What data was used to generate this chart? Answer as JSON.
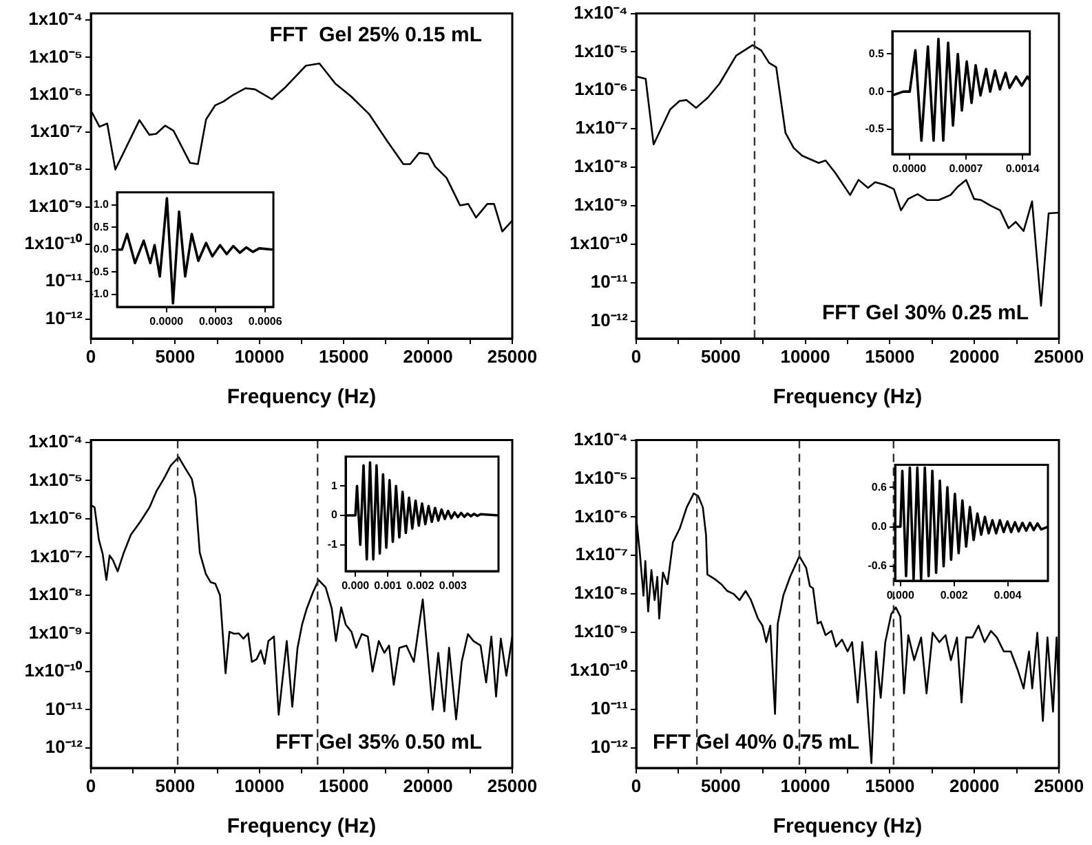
{
  "chart_data": [
    {
      "type": "line",
      "color": "#000000",
      "xlabel": "Frequency (Hz)",
      "log": "y",
      "annotations": [
        "FFT  Gel 25% 0.15 mL"
      ],
      "x": [
        0,
        511,
        970,
        1450,
        2880,
        3470,
        3875,
        4410,
        4900,
        5890,
        6350,
        6835,
        7370,
        7860,
        8450,
        9180,
        9740,
        10740,
        11545,
        12755,
        13560,
        14500,
        15445,
        16520,
        17600,
        18540,
        18945,
        19480,
        20020,
        20425,
        21100,
        21900,
        22390,
        22850,
        23520,
        23920,
        24410,
        25000
      ],
      "values": [
        3.8e-07,
        1.4e-07,
        1.7e-07,
        1e-08,
        2.1e-07,
        8.5e-08,
        9e-08,
        1.5e-07,
        1.1e-07,
        1.5e-08,
        1.4e-08,
        2.2e-07,
        5.2e-07,
        6.6e-07,
        1e-06,
        1.5e-06,
        1.4e-06,
        7.6e-07,
        1.6e-06,
        6e-06,
        6.9e-06,
        2e-06,
        9e-07,
        3e-07,
        5.6e-08,
        1.4e-08,
        1.4e-08,
        2.8e-08,
        2.6e-08,
        1.2e-08,
        6e-09,
        1.1e-09,
        1.2e-09,
        5.2e-10,
        1.2e-09,
        1.2e-09,
        2.2e-10,
        4.3e-10
      ],
      "xlim": [
        0,
        25000
      ],
      "xticks": [
        0,
        {
          "value": 2500,
          "label": null
        },
        5000,
        {
          "value": 7500,
          "label": null
        },
        10000,
        {
          "value": 12500,
          "label": null
        },
        15000,
        {
          "value": 17500,
          "label": null
        },
        20000,
        {
          "value": 22500,
          "label": null
        },
        25000
      ],
      "ylim": [
        3e-13,
        0.00015
      ],
      "yticks": [
        {
          "value": 0.0001,
          "label": "1x10⁻⁴"
        },
        {
          "value": 1e-05,
          "label": "1x10⁻⁵"
        },
        {
          "value": 1e-06,
          "label": "1x10⁻⁶"
        },
        {
          "value": 1e-07,
          "label": "1x10⁻⁷"
        },
        {
          "value": 1e-08,
          "label": "1x10⁻⁸"
        },
        {
          "value": 1e-09,
          "label": "1x10⁻⁹"
        },
        {
          "value": 1e-10,
          "label": "1x10⁻¹⁰"
        },
        {
          "value": 1e-11,
          "label": "10⁻¹¹"
        },
        {
          "value": 1e-12,
          "label": "10⁻¹²"
        }
      ]
    },
    {
      "type": "line",
      "color": "#000000",
      "x": [
        -0.000297,
        -0.00027,
        -0.000239,
        -0.000191,
        -0.000138,
        -9.8e-05,
        -7.2e-05,
        -4e-05,
        3e-06,
        4e-05,
        7.7e-05,
        0.000114,
        0.000154,
        0.000194,
        0.000241,
        0.000279,
        0.000326,
        0.000366,
        0.000406,
        0.000446,
        0.000485,
        0.000525,
        0.000565,
        0.000645
      ],
      "values": [
        0,
        0,
        0.35,
        -0.3,
        0.2,
        -0.3,
        0.1,
        -0.6,
        1.15,
        -1.2,
        0.85,
        -0.6,
        0.35,
        -0.25,
        0.15,
        -0.15,
        0.1,
        -0.1,
        0.08,
        -0.07,
        0.05,
        -0.05,
        0.03,
        0
      ],
      "xlim": [
        -0.0003,
        0.00065
      ],
      "xticks": [
        {
          "value": 0,
          "label": "0.0000"
        },
        {
          "value": 0.0003,
          "label": "0.0003"
        },
        {
          "value": 0.0006,
          "label": "0.0006"
        }
      ],
      "ylim": [
        -1.28,
        1.28
      ],
      "yticks": [
        {
          "value": -1,
          "label": "-1.0"
        },
        {
          "value": -0.5,
          "label": "-0.5"
        },
        {
          "value": 0,
          "label": "0.0"
        },
        {
          "value": 0.5,
          "label": "0.5"
        },
        {
          "value": 1,
          "label": "1.0"
        }
      ]
    },
    {
      "type": "line",
      "color": "#000000",
      "xlabel": "Frequency (Hz)",
      "log": "y",
      "annotations": [
        "FFT Gel 30% 0.25 mL"
      ],
      "ref_lines": [
        {
          "axis": "x",
          "value": 7000,
          "line_style": "dashed",
          "color": "#333333"
        }
      ],
      "x": [
        0,
        560,
        1030,
        2010,
        2560,
        2980,
        3540,
        4240,
        4930,
        5910,
        6880,
        7390,
        7860,
        8280,
        8830,
        9310,
        9810,
        10790,
        11200,
        11760,
        12650,
        13150,
        13710,
        14130,
        14690,
        15240,
        15660,
        16080,
        16640,
        17200,
        17890,
        18590,
        19010,
        19510,
        19980,
        20400,
        20960,
        21520,
        22020,
        22440,
        22910,
        23410,
        23940,
        24390,
        25000
      ],
      "values": [
        2.3e-06,
        2e-06,
        3.9e-08,
        3.2e-07,
        5.3e-07,
        5.6e-07,
        3.5e-07,
        6.5e-07,
        1.5e-06,
        8e-06,
        1.5e-05,
        1.1e-05,
        5.2e-06,
        4e-06,
        7.8e-08,
        3.2e-08,
        2e-08,
        1.3e-08,
        1.5e-08,
        7.3e-09,
        1.9e-09,
        4.7e-09,
        2.9e-09,
        4.1e-09,
        3.5e-09,
        2.7e-09,
        7.6e-10,
        1.5e-09,
        2e-09,
        1.4e-09,
        1.4e-09,
        1.9e-09,
        3.1e-09,
        4.7e-09,
        1.5e-09,
        1.4e-09,
        1e-09,
        7.6e-10,
        2.6e-10,
        3.8e-10,
        2.2e-10,
        1.3e-09,
        2.5e-12,
        6.3e-10,
        6.6e-10
      ],
      "xlim": [
        0,
        25000
      ],
      "xticks": [
        0,
        {
          "value": 2500,
          "label": null
        },
        5000,
        {
          "value": 7500,
          "label": null
        },
        10000,
        {
          "value": 12500,
          "label": null
        },
        15000,
        {
          "value": 17500,
          "label": null
        },
        20000,
        {
          "value": 22500,
          "label": null
        },
        25000
      ],
      "ylim": [
        3.5e-13,
        0.0001
      ],
      "yticks": [
        {
          "value": 0.0001,
          "label": "1x10⁻⁴"
        },
        {
          "value": 1e-05,
          "label": "1x10⁻⁵"
        },
        {
          "value": 1e-06,
          "label": "1x10⁻⁶"
        },
        {
          "value": 1e-07,
          "label": "1x10⁻⁷"
        },
        {
          "value": 1e-08,
          "label": "1x10⁻⁸"
        },
        {
          "value": 1e-09,
          "label": "1x10⁻⁹"
        },
        {
          "value": 1e-10,
          "label": "1x10⁻¹⁰"
        },
        {
          "value": 1e-11,
          "label": "10⁻¹¹"
        },
        {
          "value": 1e-12,
          "label": "10⁻¹²"
        }
      ]
    },
    {
      "type": "line",
      "color": "#000000",
      "x": [
        -0.00021,
        -7.5e-05,
        5e-06,
        7.5e-05,
        0.00015,
        0.00023,
        0.0003,
        0.00036,
        0.00042,
        0.00048,
        0.00054,
        0.0006,
        0.00065,
        0.00071,
        0.00077,
        0.00082,
        0.00088,
        0.00095,
        0.001,
        0.00106,
        0.00112,
        0.00119,
        0.00124,
        0.00132,
        0.00139,
        0.00146,
        0.00149
      ],
      "values": [
        -0.05,
        0,
        0,
        0.55,
        -0.65,
        0.6,
        -0.65,
        0.7,
        -0.65,
        0.65,
        -0.45,
        0.5,
        -0.25,
        0.4,
        -0.15,
        0.35,
        -0.05,
        0.3,
        0,
        0.28,
        0.03,
        0.25,
        0.05,
        0.2,
        0.08,
        0.2,
        0.15
      ],
      "xlim": [
        -0.00021,
        0.00149
      ],
      "xticks": [
        {
          "value": 0,
          "label": "0.0000"
        },
        {
          "value": 0.0007,
          "label": "0.0007"
        },
        {
          "value": 0.0014,
          "label": "0.0014"
        }
      ],
      "ylim": [
        -0.83,
        0.8
      ],
      "yticks": [
        {
          "value": -0.5,
          "label": "-0.5"
        },
        {
          "value": 0,
          "label": "0.0"
        },
        {
          "value": 0.5,
          "label": "0.5"
        }
      ]
    },
    {
      "type": "line",
      "color": "#000000",
      "xlabel": "Frequency (Hz)",
      "log": "y",
      "annotations": [
        "FFT Gel 35% 0.50 mL"
      ],
      "ref_lines": [
        {
          "axis": "x",
          "value": 5150,
          "line_style": "dashed",
          "color": "#333333"
        },
        {
          "axis": "x",
          "value": 13450,
          "line_style": "dashed",
          "color": "#333333"
        }
      ],
      "x": [
        0,
        220,
        470,
        700,
        920,
        1110,
        1310,
        1590,
        1950,
        2370,
        2920,
        3480,
        3900,
        4320,
        4740,
        5210,
        5570,
        5990,
        6210,
        6460,
        6820,
        7100,
        7380,
        7660,
        7990,
        8220,
        8500,
        8770,
        9050,
        9330,
        9550,
        9830,
        10080,
        10310,
        10530,
        10860,
        11140,
        11620,
        11950,
        12260,
        12530,
        12810,
        13180,
        13510,
        13930,
        14290,
        14540,
        14850,
        15120,
        15460,
        15740,
        16070,
        16430,
        16710,
        17080,
        17410,
        17690,
        17970,
        18300,
        18720,
        19160,
        19690,
        19910,
        20280,
        20610,
        20970,
        21250,
        21670,
        22000,
        22370,
        22700,
        23120,
        23450,
        23760,
        24040,
        24320,
        24650,
        25000
      ],
      "values": [
        2.3e-06,
        2e-06,
        2.9e-07,
        1.2e-07,
        2.5e-08,
        1.1e-07,
        8.3e-08,
        4.2e-08,
        1.3e-07,
        3.8e-07,
        8.3e-07,
        2e-06,
        5.4e-06,
        1.1e-05,
        2.5e-05,
        4.1e-05,
        2.2e-05,
        1.1e-05,
        3.6e-06,
        1.3e-07,
        3.6e-08,
        2.2e-08,
        2e-08,
        1e-08,
        9e-11,
        1.1e-09,
        9.8e-10,
        1e-09,
        7.3e-10,
        1e-09,
        1.8e-10,
        2.1e-10,
        3.6e-10,
        1.6e-10,
        6.3e-10,
        8.3e-10,
        7.4e-12,
        6.3e-10,
        1.2e-11,
        4.2e-10,
        1.7e-09,
        4.5e-09,
        1.2e-08,
        2.5e-08,
        1.6e-08,
        4.5e-09,
        6.3e-10,
        4.8e-09,
        1.7e-09,
        1.1e-09,
        4.2e-10,
        9.6e-10,
        8.3e-10,
        1e-10,
        6.3e-10,
        3.1e-10,
        4.8e-10,
        4.5e-11,
        4.2e-10,
        4.8e-10,
        1.8e-10,
        7.8e-09,
        6.3e-10,
        1e-11,
        3.1e-10,
        9.1e-12,
        4.2e-10,
        5.6e-12,
        1.8e-10,
        9.6e-10,
        6.3e-10,
        4.8e-10,
        5.2e-11,
        8.3e-10,
        2.2e-11,
        7.3e-10,
        7.8e-11,
        8.3e-10
      ],
      "xlim": [
        0,
        25000
      ],
      "xticks": [
        0,
        {
          "value": 2500,
          "label": null
        },
        5000,
        {
          "value": 7500,
          "label": null
        },
        10000,
        {
          "value": 12500,
          "label": null
        },
        15000,
        {
          "value": 17500,
          "label": null
        },
        20000,
        {
          "value": 22500,
          "label": null
        },
        25000
      ],
      "ylim": [
        3.3e-13,
        0.000115
      ],
      "yticks": [
        {
          "value": 0.0001,
          "label": "1x10⁻⁴"
        },
        {
          "value": 1e-05,
          "label": "1x10⁻⁵"
        },
        {
          "value": 1e-06,
          "label": "1x10⁻⁶"
        },
        {
          "value": 1e-07,
          "label": "1x10⁻⁷"
        },
        {
          "value": 1e-08,
          "label": "1x10⁻⁸"
        },
        {
          "value": 1e-09,
          "label": "1x10⁻⁹"
        },
        {
          "value": 1e-10,
          "label": "1x10⁻¹⁰"
        },
        {
          "value": 1e-11,
          "label": "10⁻¹¹"
        },
        {
          "value": 1e-12,
          "label": "10⁻¹²"
        }
      ]
    },
    {
      "type": "line",
      "color": "#000000",
      "x": [
        -0.0003,
        0,
        5e-05,
        0.00015,
        0.00025,
        0.00035,
        0.00045,
        0.00055,
        0.00065,
        0.00075,
        0.00085,
        0.00095,
        0.00105,
        0.00115,
        0.00125,
        0.00135,
        0.00145,
        0.00155,
        0.00165,
        0.00175,
        0.00185,
        0.00195,
        0.00205,
        0.00215,
        0.00225,
        0.00235,
        0.00245,
        0.00255,
        0.00265,
        0.00275,
        0.00285,
        0.00295,
        0.00305,
        0.00315,
        0.00325,
        0.00335,
        0.00345,
        0.00355,
        0.00365,
        0.00375,
        0.00385,
        0.0044
      ],
      "values": [
        0,
        0,
        1,
        -1,
        1.7,
        -1.5,
        1.8,
        -1.5,
        1.7,
        -1.3,
        1.4,
        -1.1,
        1.2,
        -0.9,
        1,
        -0.75,
        0.8,
        -0.6,
        0.6,
        -0.45,
        0.5,
        -0.35,
        0.4,
        -0.3,
        0.32,
        -0.22,
        0.25,
        -0.18,
        0.2,
        -0.12,
        0.15,
        -0.1,
        0.1,
        -0.06,
        0.08,
        -0.05,
        0.06,
        -0.03,
        0.05,
        -0.02,
        0.04,
        0
      ],
      "xlim": [
        -0.0003,
        0.0044
      ],
      "xticks": [
        {
          "value": 0,
          "label": "0.000"
        },
        {
          "value": 0.001,
          "label": "0.001"
        },
        {
          "value": 0.002,
          "label": "0.002"
        },
        {
          "value": 0.003,
          "label": "0.003"
        }
      ],
      "ylim": [
        -1.9,
        2
      ],
      "yticks": [
        -1,
        0,
        1
      ]
    },
    {
      "type": "line",
      "color": "#000000",
      "xlabel": "Frequency (Hz)",
      "log": "y",
      "annotations": [
        "FFT Gel 40% 0.75 mL"
      ],
      "ref_lines": [
        {
          "axis": "x",
          "value": 3590,
          "line_style": "dashed",
          "color": "#333333"
        },
        {
          "axis": "x",
          "value": 9650,
          "line_style": "dashed",
          "color": "#333333"
        },
        {
          "axis": "x",
          "value": 15220,
          "line_style": "dashed",
          "color": "#333333"
        }
      ],
      "x": [
        0,
        220,
        430,
        540,
        710,
        900,
        1090,
        1250,
        1360,
        1580,
        1850,
        2170,
        2580,
        2990,
        3400,
        3670,
        3940,
        4130,
        4210,
        4670,
        5030,
        5380,
        5760,
        6110,
        6470,
        6790,
        7200,
        7470,
        7690,
        7930,
        8210,
        8370,
        8700,
        9100,
        9650,
        10050,
        10270,
        10460,
        10730,
        10920,
        11200,
        11550,
        11820,
        12170,
        12500,
        12770,
        13100,
        13370,
        13590,
        13910,
        14180,
        14460,
        14730,
        15080,
        15350,
        15620,
        15840,
        16090,
        16440,
        16850,
        17170,
        17530,
        17930,
        18290,
        18610,
        18970,
        19240,
        19510,
        19890,
        20240,
        20600,
        20980,
        21330,
        21740,
        22150,
        22550,
        22910,
        23230,
        23420,
        23720,
        24050,
        24320,
        24650,
        24860,
        25000
      ],
      "values": [
        1e-06,
        1.1e-07,
        9e-09,
        7.2e-08,
        3.5e-09,
        4.2e-08,
        6.9e-09,
        2.8e-08,
        2.3e-09,
        3.6e-08,
        1.8e-08,
        2.2e-07,
        5.1e-07,
        1.8e-06,
        4.1e-06,
        3.5e-06,
        1.8e-06,
        3.4e-07,
        3.2e-08,
        2.4e-08,
        1.8e-08,
        1.2e-08,
        1e-08,
        6.9e-09,
        1.2e-08,
        6.9e-09,
        2.3e-09,
        1.5e-09,
        5.6e-10,
        1.5e-09,
        7.6e-12,
        1.7e-09,
        9.1e-09,
        2.8e-08,
        9.6e-08,
        4.8e-08,
        1.6e-08,
        1.4e-08,
        1.7e-09,
        1.9e-09,
        8.5e-10,
        1.1e-09,
        4.3e-10,
        6.5e-10,
        3.2e-10,
        5.6e-10,
        1.5e-11,
        5.6e-10,
        4e-11,
        4e-13,
        3.2e-10,
        2e-11,
        5.6e-10,
        3e-09,
        4.5e-09,
        2.6e-09,
        2.6e-11,
        8.5e-10,
        1.9e-10,
        7.4e-10,
        2.6e-11,
        9.8e-10,
        5.6e-10,
        8.5e-10,
        1.9e-10,
        7.4e-10,
        1.5e-11,
        7.4e-10,
        7.4e-10,
        1.5e-09,
        5.6e-10,
        1.1e-09,
        7.4e-10,
        3.2e-10,
        3.2e-10,
        1.1e-10,
        3.5e-11,
        3.2e-10,
        3.5e-11,
        9.8e-10,
        5e-12,
        7.4e-10,
        8.7e-12,
        7.4e-10,
        2.6e-11
      ],
      "xlim": [
        0,
        25000
      ],
      "xticks": [
        0,
        {
          "value": 2500,
          "label": null
        },
        5000,
        {
          "value": 7500,
          "label": null
        },
        10000,
        {
          "value": 12500,
          "label": null
        },
        15000,
        {
          "value": 17500,
          "label": null
        },
        20000,
        {
          "value": 22500,
          "label": null
        },
        25000
      ],
      "ylim": [
        3e-13,
        0.0001
      ],
      "yticks": [
        {
          "value": 0.0001,
          "label": "1x10⁻⁴"
        },
        {
          "value": 1e-05,
          "label": "1x10⁻⁵"
        },
        {
          "value": 1e-06,
          "label": "1x10⁻⁶"
        },
        {
          "value": 1e-07,
          "label": "1x10⁻⁷"
        },
        {
          "value": 1e-08,
          "label": "1x10⁻⁸"
        },
        {
          "value": 1e-09,
          "label": "1x10⁻⁹"
        },
        {
          "value": 1e-10,
          "label": "1x10⁻¹⁰"
        },
        {
          "value": 1e-11,
          "label": "10⁻¹¹"
        },
        {
          "value": 1e-12,
          "label": "10⁻¹²"
        }
      ]
    },
    {
      "type": "line",
      "color": "#000000",
      "x": [
        -0.0002,
        0,
        7e-05,
        0.00021,
        0.00035,
        0.00049,
        0.00063,
        0.00077,
        0.00091,
        0.00105,
        0.00119,
        0.00133,
        0.00147,
        0.00161,
        0.00175,
        0.00189,
        0.00203,
        0.00217,
        0.00231,
        0.00245,
        0.00259,
        0.00273,
        0.00287,
        0.00301,
        0.00315,
        0.00329,
        0.00343,
        0.00357,
        0.00371,
        0.00385,
        0.00399,
        0.00413,
        0.00427,
        0.00441,
        0.00455,
        0.00469,
        0.00483,
        0.00497,
        0.00511,
        0.00525,
        0.0055
      ],
      "values": [
        0,
        0,
        0.85,
        -0.75,
        0.9,
        -0.8,
        0.9,
        -0.8,
        0.9,
        -0.75,
        0.85,
        -0.7,
        0.7,
        -0.6,
        0.6,
        -0.5,
        0.5,
        -0.4,
        0.4,
        -0.3,
        0.3,
        -0.2,
        0.2,
        -0.12,
        0.15,
        -0.1,
        0.1,
        -0.1,
        0.1,
        -0.08,
        0.08,
        -0.08,
        0.07,
        -0.07,
        0.06,
        -0.06,
        0.06,
        -0.05,
        0.05,
        -0.04,
        0
      ],
      "xlim": [
        -0.0002,
        0.0055
      ],
      "xticks": [
        {
          "value": 0,
          "label": "0.000"
        },
        {
          "value": 0.002,
          "label": "0.002"
        },
        {
          "value": 0.004,
          "label": "0.004"
        }
      ],
      "ylim": [
        -0.82,
        0.94
      ],
      "yticks": [
        {
          "value": -0.6,
          "label": "-0.6"
        },
        {
          "value": 0,
          "label": "0.0"
        },
        {
          "value": 0.6,
          "label": "0.6"
        }
      ]
    }
  ]
}
